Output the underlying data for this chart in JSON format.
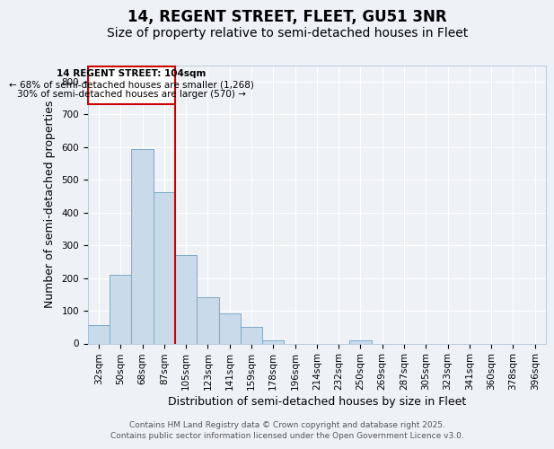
{
  "title": "14, REGENT STREET, FLEET, GU51 3NR",
  "subtitle": "Size of property relative to semi-detached houses in Fleet",
  "xlabel": "Distribution of semi-detached houses by size in Fleet",
  "ylabel": "Number of semi-detached properties",
  "categories": [
    "32sqm",
    "50sqm",
    "68sqm",
    "87sqm",
    "105sqm",
    "123sqm",
    "141sqm",
    "159sqm",
    "178sqm",
    "196sqm",
    "214sqm",
    "232sqm",
    "250sqm",
    "269sqm",
    "287sqm",
    "305sqm",
    "323sqm",
    "341sqm",
    "360sqm",
    "378sqm",
    "396sqm"
  ],
  "values": [
    57,
    210,
    593,
    462,
    270,
    140,
    93,
    50,
    10,
    0,
    0,
    0,
    10,
    0,
    0,
    0,
    0,
    0,
    0,
    0,
    0
  ],
  "bar_color": "#c9daea",
  "bar_edge_color": "#7aaac8",
  "property_line_index": 4,
  "annotation_text_line1": "14 REGENT STREET: 104sqm",
  "annotation_text_line2": "← 68% of semi-detached houses are smaller (1,268)",
  "annotation_text_line3": "30% of semi-detached houses are larger (570) →",
  "red_color": "#cc0000",
  "footer_line1": "Contains HM Land Registry data © Crown copyright and database right 2025.",
  "footer_line2": "Contains public sector information licensed under the Open Government Licence v3.0.",
  "ylim": [
    0,
    850
  ],
  "yticks": [
    0,
    100,
    200,
    300,
    400,
    500,
    600,
    700,
    800
  ],
  "bg_color": "#eef2f7",
  "grid_color": "#ffffff",
  "title_fontsize": 12,
  "subtitle_fontsize": 10,
  "tick_fontsize": 7.5,
  "axis_label_fontsize": 9,
  "footer_fontsize": 6.5
}
